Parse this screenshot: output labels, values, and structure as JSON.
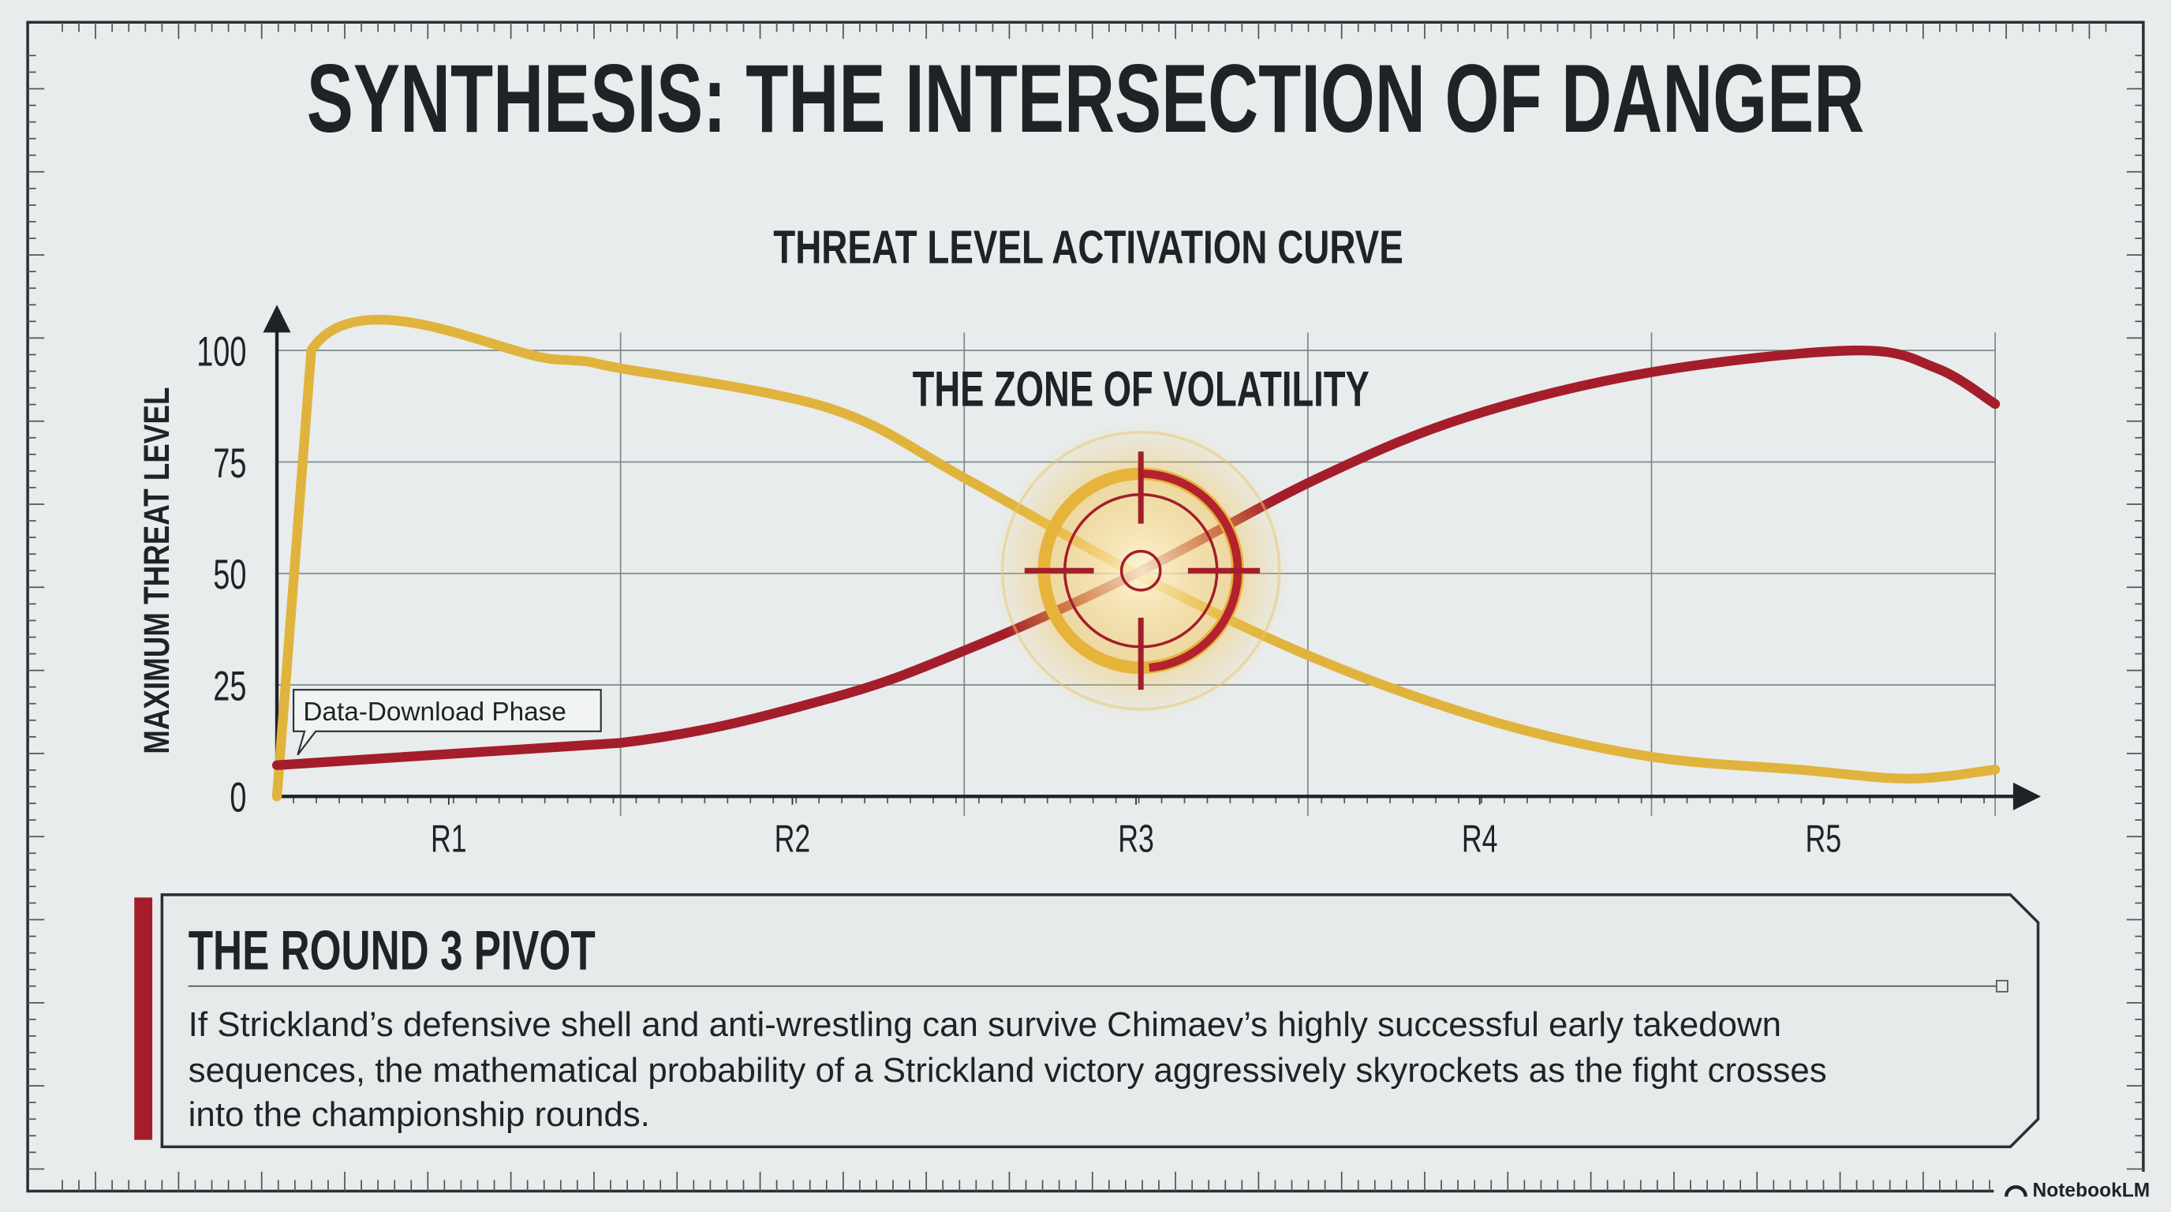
{
  "slide_title": "SYNTHESIS: THE INTERSECTION OF DANGER",
  "chart_data": {
    "type": "line",
    "title": "THREAT LEVEL ACTIVATION CURVE",
    "y_label": "MAXIMUM THREAT LEVEL",
    "annotations": [
      "THE ZONE OF VOLATILITY",
      "Data-Download Phase"
    ],
    "xlim": [
      0,
      5
    ],
    "xticks": [
      {
        "value": 0.5,
        "label": "R1"
      },
      {
        "value": 1.5,
        "label": "R2"
      },
      {
        "value": 2.5,
        "label": "R3"
      },
      {
        "value": 3.5,
        "label": "R4"
      },
      {
        "value": 4.5,
        "label": "R5"
      }
    ],
    "ylim": [
      0,
      100
    ],
    "yticks": [
      0,
      25,
      50,
      75,
      100
    ],
    "grid": true,
    "series": [
      {
        "color": "#e0b33c",
        "x": [
          0,
          0.1,
          0.81,
          1.0,
          1.61,
          2.01,
          2.5,
          3.02,
          3.53,
          3.99,
          4.43,
          4.75,
          5
        ],
        "values": [
          0,
          100,
          98,
          96,
          87,
          71,
          50,
          31,
          17,
          9,
          6,
          4,
          6
        ]
      },
      {
        "color": "#a41d2b",
        "x": [
          0,
          1.0,
          1.61,
          2.01,
          2.5,
          3.02,
          3.46,
          3.99,
          4.59,
          4.83,
          5
        ],
        "values": [
          7,
          12,
          22,
          33,
          50,
          71,
          85,
          95,
          100,
          96,
          88
        ]
      }
    ]
  },
  "panel": {
    "title": "THE ROUND 3 PIVOT",
    "lines": [
      "If Strickland’s defensive shell and anti-wrestling can survive Chimaev’s highly successful early takedown",
      "sequences, the mathematical probability of a Strickland victory aggressively skyrockets as the fight crosses",
      "into the championship rounds."
    ]
  },
  "footer": {
    "brand": "NotebookLM"
  }
}
